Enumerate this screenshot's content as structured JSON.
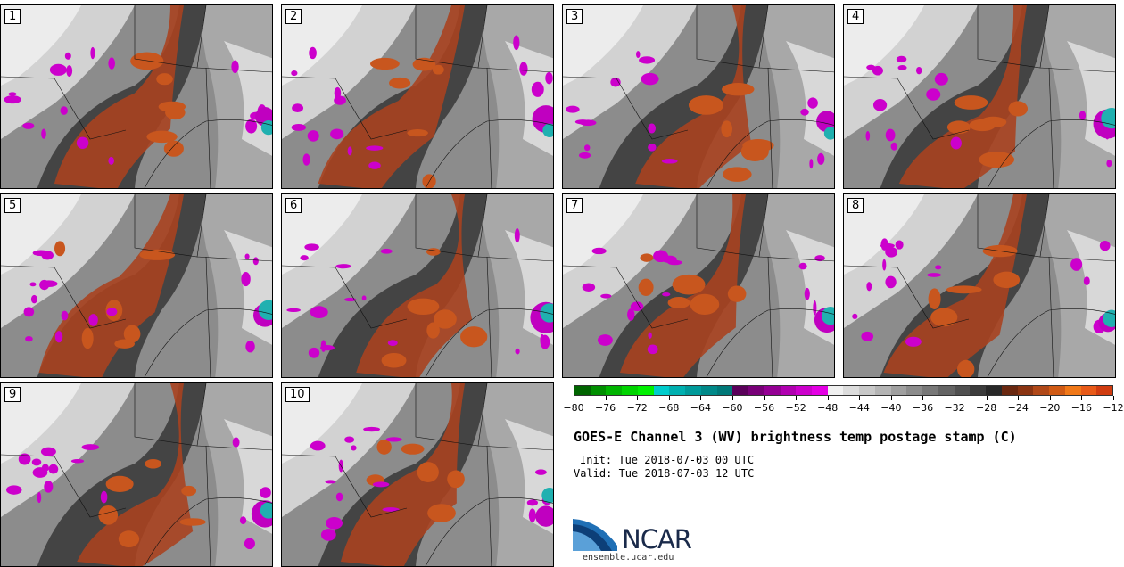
{
  "panels": [
    {
      "label": "1"
    },
    {
      "label": "2"
    },
    {
      "label": "3"
    },
    {
      "label": "4"
    },
    {
      "label": "5"
    },
    {
      "label": "6"
    },
    {
      "label": "7"
    },
    {
      "label": "8"
    },
    {
      "label": "9"
    },
    {
      "label": "10"
    }
  ],
  "colorbar": {
    "colors": [
      "#006400",
      "#008f00",
      "#00b400",
      "#00d400",
      "#00f000",
      "#00cccc",
      "#00b0b0",
      "#009a9a",
      "#008888",
      "#007878",
      "#5a005a",
      "#780078",
      "#940094",
      "#b000b0",
      "#cc00cc",
      "#e400e4",
      "#f0f0f0",
      "#dcdcdc",
      "#c8c8c8",
      "#b4b4b4",
      "#a0a0a0",
      "#8c8c8c",
      "#787878",
      "#646464",
      "#505050",
      "#3c3c3c",
      "#282828",
      "#6a2810",
      "#8a3412",
      "#b04818",
      "#d05a14",
      "#f07818",
      "#e85a18",
      "#d03c10"
    ],
    "ticks": [
      "−80",
      "−76",
      "−72",
      "−68",
      "−64",
      "−60",
      "−56",
      "−52",
      "−48",
      "−44",
      "−40",
      "−36",
      "−32",
      "−28",
      "−24",
      "−20",
      "−16",
      "−12"
    ]
  },
  "title": "GOES-E Channel 3 (WV) brightness temp postage stamp (C)",
  "init": "Init: Tue 2018-07-03 00 UTC",
  "valid": "Valid: Tue 2018-07-03 12 UTC",
  "logo": {
    "text": "NCAR",
    "url": "ensemble.ucar.edu"
  }
}
